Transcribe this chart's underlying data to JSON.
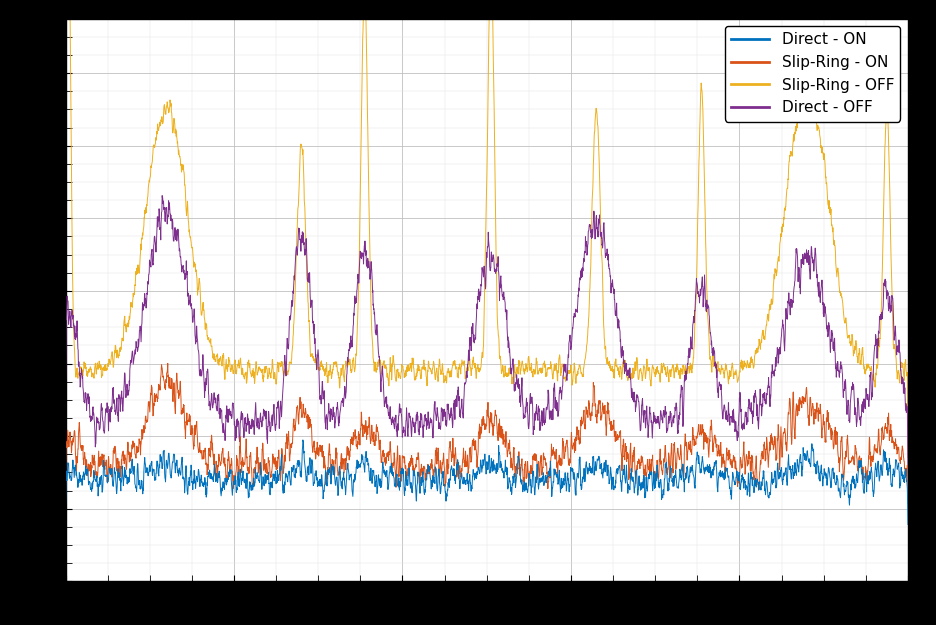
{
  "legend_labels": [
    "Direct - OFF",
    "Slip-Ring - OFF",
    "Direct - ON",
    "Slip-Ring - ON"
  ],
  "line_colors": [
    "#0072bd",
    "#d95319",
    "#edb120",
    "#7e2f8e"
  ],
  "background_color": "#000000",
  "axes_background": "#ffffff",
  "grid_color": "#c0c0c0",
  "legend_fontsize": 11,
  "n_points": 3000,
  "seed": 42,
  "peaks_x": [
    0.003,
    0.12,
    0.28,
    0.355,
    0.505,
    0.63,
    0.755,
    0.88,
    0.975
  ],
  "yellow_base": 0.58,
  "yellow_noise": 0.035,
  "yellow_peak_heights": [
    1.4,
    0.72,
    0.62,
    1.05,
    1.1,
    0.72,
    0.78,
    0.78,
    0.7
  ],
  "yellow_peak_widths": [
    0.003,
    0.025,
    0.005,
    0.004,
    0.004,
    0.005,
    0.004,
    0.025,
    0.004
  ],
  "purple_base": 0.44,
  "purple_noise": 0.055,
  "purple_peak_heights": [
    0.3,
    0.58,
    0.52,
    0.48,
    0.45,
    0.55,
    0.38,
    0.45,
    0.35
  ],
  "purple_peak_widths": [
    0.012,
    0.025,
    0.012,
    0.012,
    0.018,
    0.022,
    0.012,
    0.025,
    0.012
  ],
  "orange_base": 0.32,
  "orange_noise": 0.055,
  "orange_peak_heights": [
    0.08,
    0.22,
    0.15,
    0.12,
    0.12,
    0.18,
    0.1,
    0.18,
    0.1
  ],
  "orange_peak_widths": [
    0.012,
    0.022,
    0.012,
    0.012,
    0.014,
    0.018,
    0.012,
    0.022,
    0.01
  ],
  "blue_base": 0.28,
  "blue_noise": 0.045,
  "blue_peak_heights": [
    0.04,
    0.06,
    0.05,
    0.04,
    0.04,
    0.05,
    0.04,
    0.06,
    0.04
  ],
  "blue_peak_widths": [
    0.008,
    0.012,
    0.008,
    0.008,
    0.01,
    0.012,
    0.008,
    0.012,
    0.008
  ],
  "ylim": [
    0,
    1.55
  ],
  "figsize": [
    9.36,
    6.25
  ],
  "dpi": 100
}
